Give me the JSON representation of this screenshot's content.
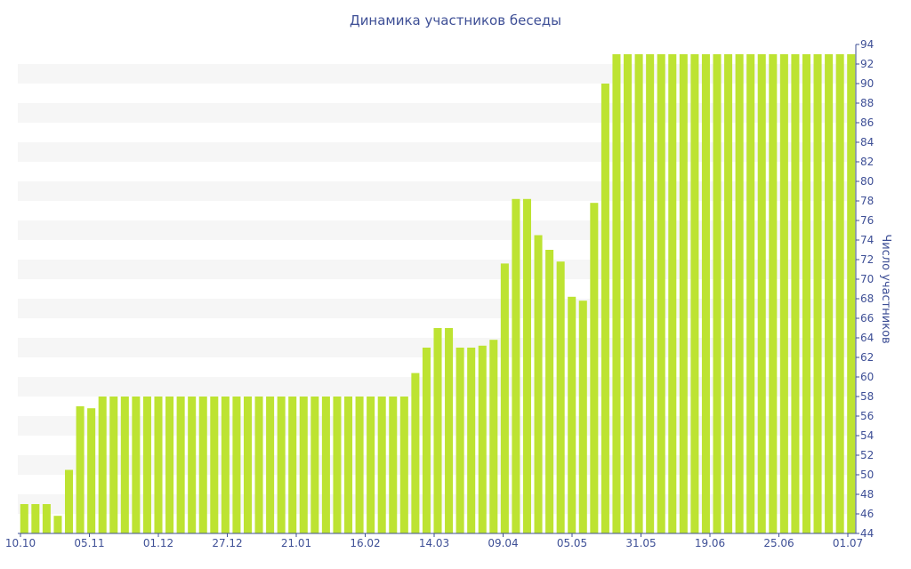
{
  "chart_data": {
    "type": "bar",
    "title": "Динамика участников беседы",
    "ylabel": "Число участников",
    "xlabel": "",
    "ylim": [
      44,
      94
    ],
    "yticks": [
      44,
      46,
      48,
      50,
      52,
      54,
      56,
      58,
      60,
      62,
      64,
      66,
      68,
      70,
      72,
      74,
      76,
      78,
      80,
      82,
      84,
      86,
      88,
      90,
      92,
      94
    ],
    "y_axis_position": "right",
    "xtick_labels": [
      "10.10",
      "05.11",
      "01.12",
      "27.12",
      "21.01",
      "16.02",
      "14.03",
      "09.04",
      "05.05",
      "31.05",
      "19.06",
      "25.06",
      "01.07"
    ],
    "values": [
      47,
      47,
      47,
      45.8,
      50.5,
      57,
      56.8,
      58,
      58,
      58,
      58,
      58,
      58,
      58,
      58,
      58,
      58,
      58,
      58,
      58,
      58,
      58,
      58,
      58,
      58,
      58,
      58,
      58,
      58,
      58,
      58,
      58,
      58,
      58,
      58,
      60.4,
      63,
      65,
      65,
      63,
      63,
      63.2,
      63.8,
      71.6,
      78.2,
      78.2,
      74.5,
      73,
      71.8,
      68.2,
      67.8,
      77.8,
      90,
      93,
      93,
      93,
      93,
      93,
      93,
      93,
      93,
      93,
      93,
      93,
      93,
      93,
      93,
      93,
      93,
      93,
      93,
      93,
      93,
      93,
      93
    ],
    "colors": {
      "bar": "#bde332",
      "text": "#3e4f96",
      "band": "#f6f6f6"
    },
    "grid": "alternating horizontal bands"
  }
}
